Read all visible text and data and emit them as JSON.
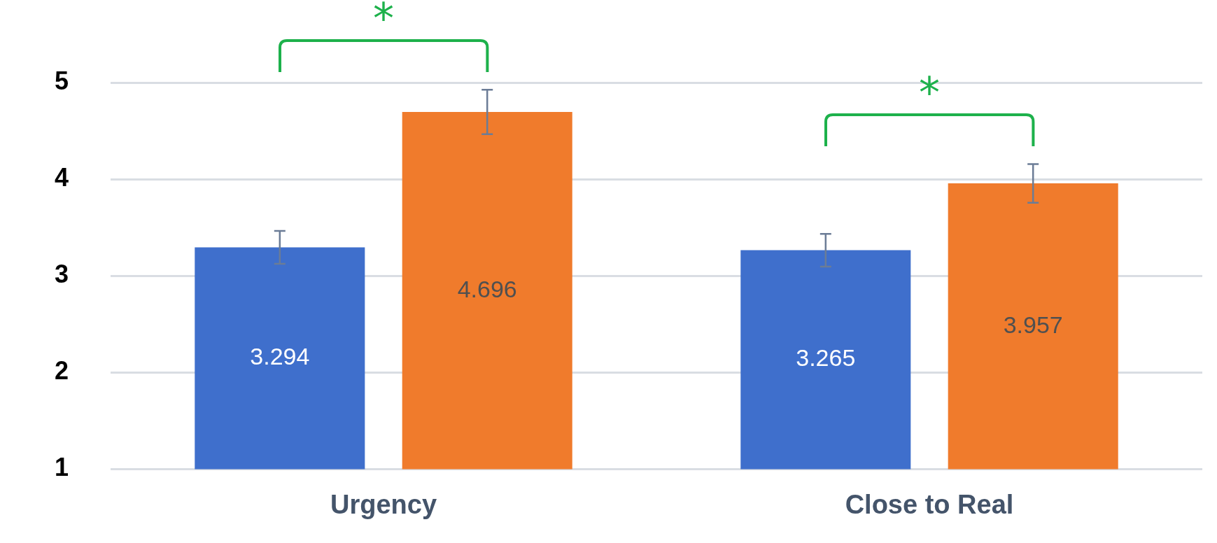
{
  "chart_data": {
    "type": "bar",
    "categories": [
      "Urgency",
      "Close to Real"
    ],
    "series": [
      {
        "color": "#3f6fcc",
        "values": [
          3.294,
          3.265
        ],
        "errors": [
          0.17,
          0.17
        ]
      },
      {
        "color": "#f07b2c",
        "values": [
          4.696,
          3.957
        ],
        "errors": [
          0.23,
          0.2
        ]
      }
    ],
    "ylim": [
      1,
      5
    ],
    "yticks": [
      1,
      2,
      3,
      4,
      5
    ],
    "grid": "y",
    "data_labels": true,
    "legend": false,
    "annotations": [
      "*",
      "*"
    ]
  }
}
